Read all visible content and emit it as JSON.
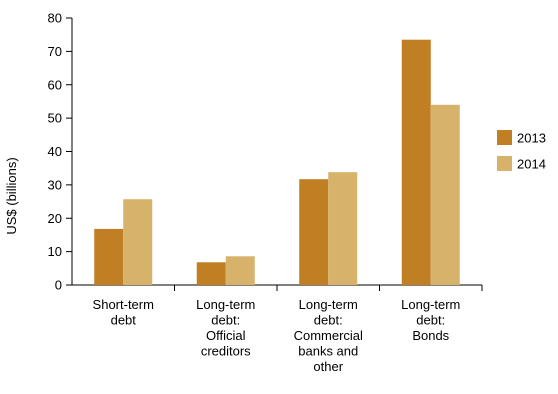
{
  "chart_data": {
    "type": "bar",
    "title": "",
    "xlabel": "",
    "ylabel": "US$ (billions)",
    "ylim": [
      0,
      80
    ],
    "yticks": [
      0,
      10,
      20,
      30,
      40,
      50,
      60,
      70,
      80
    ],
    "grid": false,
    "legend_position": "right",
    "categories": [
      [
        "Short-term",
        "debt"
      ],
      [
        "Long-term",
        "debt:",
        "Official",
        "creditors"
      ],
      [
        "Long-term",
        "debt:",
        "Commercial",
        "banks and",
        "other"
      ],
      [
        "Long-term",
        "debt:",
        "Bonds"
      ]
    ],
    "series": [
      {
        "name": "2013",
        "color": "#C17F24",
        "values": [
          16.8,
          6.8,
          31.7,
          73.5
        ]
      },
      {
        "name": "2014",
        "color": "#D7B26A",
        "values": [
          25.7,
          8.6,
          33.8,
          54.0
        ]
      }
    ]
  }
}
